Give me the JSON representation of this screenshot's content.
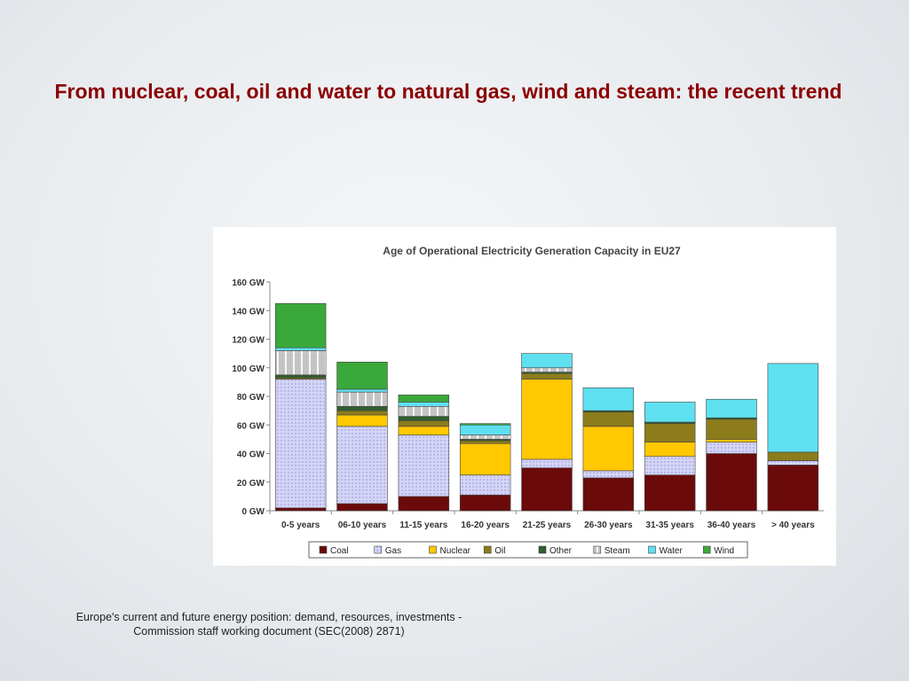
{
  "slide": {
    "title": "From nuclear, coal, oil and water to natural gas, wind and steam: the recent trend",
    "source_line1": "Europe's current and future energy position: demand, resources, investments -",
    "source_line2": "Commission staff working document (SEC(2008) 2871)"
  },
  "chart_data": {
    "type": "bar",
    "stacked": true,
    "title": "Age of Operational Electricity Generation Capacity in EU27",
    "xlabel": "",
    "ylabel": "",
    "ylim": [
      0,
      160
    ],
    "yticks": [
      0,
      20,
      40,
      60,
      80,
      100,
      120,
      140,
      160
    ],
    "ytick_labels": [
      "0 GW",
      "20 GW",
      "40 GW",
      "60 GW",
      "80 GW",
      "100 GW",
      "120 GW",
      "140 GW",
      "160 GW"
    ],
    "grid": false,
    "legend_position": "bottom",
    "categories": [
      "0-5 years",
      "06-10 years",
      "11-15 years",
      "16-20 years",
      "21-25 years",
      "26-30 years",
      "31-35 years",
      "36-40 years",
      "> 40 years"
    ],
    "series": [
      {
        "name": "Coal",
        "color": "#6b0a0a",
        "pattern": "solid",
        "values": [
          2,
          5,
          10,
          11,
          30,
          23,
          25,
          40,
          32
        ]
      },
      {
        "name": "Gas",
        "color": "#c9c9f2",
        "pattern": "dots",
        "values": [
          90,
          54,
          43,
          14,
          6,
          5,
          13,
          8,
          3
        ]
      },
      {
        "name": "Nuclear",
        "color": "#ffc800",
        "pattern": "solid",
        "values": [
          0,
          8,
          6,
          22,
          56,
          31,
          10,
          2,
          0
        ]
      },
      {
        "name": "Oil",
        "color": "#8c7c1c",
        "pattern": "solid",
        "values": [
          1,
          3,
          4,
          2,
          4,
          10,
          13,
          14,
          6
        ]
      },
      {
        "name": "Other",
        "color": "#2f5e2f",
        "pattern": "solid",
        "values": [
          2,
          3,
          3,
          1,
          1,
          1,
          1,
          1,
          0
        ]
      },
      {
        "name": "Steam",
        "color": "#b8b8b8",
        "pattern": "stripes",
        "values": [
          17,
          10,
          7,
          3,
          3,
          0,
          0,
          0,
          0
        ]
      },
      {
        "name": "Water",
        "color": "#5fe0f0",
        "pattern": "solid",
        "values": [
          2,
          2,
          3,
          7,
          10,
          16,
          14,
          13,
          62
        ]
      },
      {
        "name": "Wind",
        "color": "#3aa83a",
        "pattern": "solid",
        "values": [
          31,
          19,
          5,
          1,
          0,
          0,
          0,
          0,
          0
        ]
      }
    ]
  }
}
